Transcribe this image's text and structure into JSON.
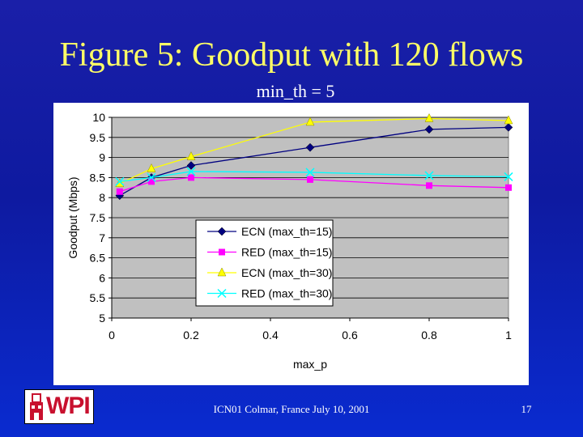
{
  "slide": {
    "title": "Figure 5: Goodput with 120 flows",
    "subtitle": "min_th = 5",
    "footer": "ICN01 Colmar, France July 10, 2001",
    "page_number": "17",
    "logo_text": "WPI"
  },
  "colors": {
    "background": "#1020b0",
    "title": "#ffff66",
    "plot_area": "#c0c0c0",
    "ecn15": "#000080",
    "red15": "#ff00ff",
    "ecn30": "#ffff00",
    "red30": "#00ffff"
  },
  "chart_data": {
    "type": "line",
    "title": "",
    "xlabel": "max_p",
    "ylabel": "Goodput (Mbps)",
    "xlim": [
      0,
      1
    ],
    "ylim": [
      5,
      10
    ],
    "x_ticks": [
      0,
      0.2,
      0.4,
      0.6,
      0.8,
      1
    ],
    "x_tick_labels": [
      "0",
      "0.2",
      "0.4",
      "0.6",
      "0.8",
      "1"
    ],
    "y_ticks": [
      5,
      5.5,
      6,
      6.5,
      7,
      7.5,
      8,
      8.5,
      9,
      9.5,
      10
    ],
    "y_tick_labels": [
      "5",
      "5.5",
      "6",
      "6.5",
      "7",
      "7.5",
      "8",
      "8.5",
      "9",
      "9.5",
      "10"
    ],
    "grid": "horizontal",
    "legend_position": "center-left",
    "series": [
      {
        "name": "ECN (max_th=15)",
        "marker": "diamond",
        "color": "#000080",
        "x": [
          0.02,
          0.1,
          0.2,
          0.5,
          0.8,
          1.0
        ],
        "y": [
          8.05,
          8.5,
          8.8,
          9.25,
          9.7,
          9.75
        ]
      },
      {
        "name": "RED (max_th=15)",
        "marker": "square",
        "color": "#ff00ff",
        "x": [
          0.02,
          0.1,
          0.2,
          0.5,
          0.8,
          1.0
        ],
        "y": [
          8.15,
          8.4,
          8.5,
          8.45,
          8.3,
          8.25
        ]
      },
      {
        "name": "ECN (max_th=30)",
        "marker": "triangle",
        "color": "#ffff00",
        "x": [
          0.02,
          0.1,
          0.2,
          0.5,
          0.8,
          1.0
        ],
        "y": [
          8.35,
          8.72,
          9.02,
          9.88,
          9.97,
          9.92
        ]
      },
      {
        "name": "RED (max_th=30)",
        "marker": "x",
        "color": "#00ffff",
        "x": [
          0.02,
          0.1,
          0.2,
          0.5,
          0.8,
          1.0
        ],
        "y": [
          8.4,
          8.5,
          8.65,
          8.63,
          8.55,
          8.52
        ]
      }
    ]
  }
}
